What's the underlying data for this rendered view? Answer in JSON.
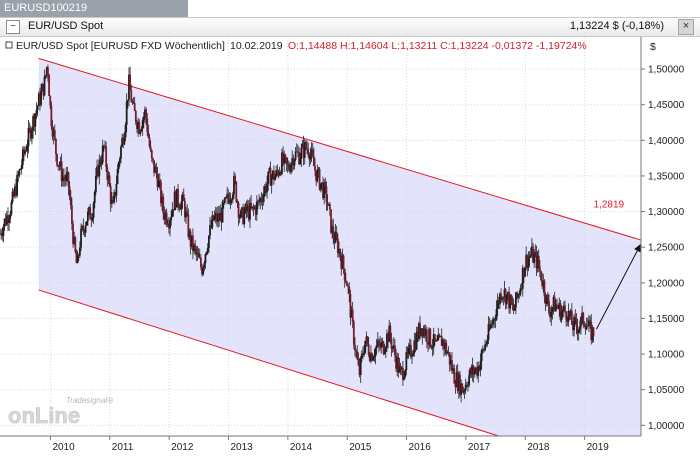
{
  "tab": {
    "label": "EURUSD100219"
  },
  "header": {
    "collapse_icon": "minus-box-icon",
    "title": "EUR/USD Spot",
    "price_change": "1,13224 $  (-0,18%)",
    "close_icon": "close-icon"
  },
  "legend": {
    "name": "EUR/USD Spot [EURUSD FXD  Wöchentlich]",
    "date": "10.02.2019",
    "ohlc_text": "O:1,14488 H:1,14604 L:1,13211 C:1,13224 -0,01372 -1,19724%"
  },
  "colors": {
    "channel_line": "#e01b22",
    "channel_fill": "#e3e3fb",
    "candle_down": "#7a1e2e",
    "candle_up": "#1f1f1f",
    "header_bg": "#9aa1aa"
  },
  "watermark": {
    "top": "Tradesignal®",
    "bottom": "onLine"
  },
  "chart_data": {
    "type": "candlestick",
    "title": "EUR/USD Spot",
    "currency_label": "$",
    "y_range": [
      0.985,
      1.545
    ],
    "y_ticks": [
      "1,50000",
      "1,45000",
      "1,40000",
      "1,35000",
      "1,30000",
      "1,25000",
      "1,20000",
      "1,15000",
      "1,10000",
      "1,05000",
      "1,00000"
    ],
    "x_range": [
      2009.15,
      2019.95
    ],
    "x_ticks": [
      "2010",
      "2011",
      "2012",
      "2013",
      "2014",
      "2015",
      "2016",
      "2017",
      "2018",
      "2019"
    ],
    "trend_channel": {
      "upper": [
        [
          2009.8,
          1.515
        ],
        [
          2019.95,
          1.26
        ]
      ],
      "lower": [
        [
          2009.8,
          1.19
        ],
        [
          2017.55,
          0.985
        ]
      ]
    },
    "target_label": "1,2819",
    "arrow": {
      "from": [
        2019.2,
        1.135
      ],
      "to": [
        2019.95,
        1.255
      ]
    },
    "series_points": [
      [
        2009.15,
        1.27
      ],
      [
        2009.35,
        1.31
      ],
      [
        2009.55,
        1.38
      ],
      [
        2009.75,
        1.44
      ],
      [
        2009.9,
        1.48
      ],
      [
        2009.95,
        1.51
      ],
      [
        2010.0,
        1.44
      ],
      [
        2010.1,
        1.38
      ],
      [
        2010.2,
        1.35
      ],
      [
        2010.3,
        1.34
      ],
      [
        2010.4,
        1.25
      ],
      [
        2010.45,
        1.22
      ],
      [
        2010.5,
        1.26
      ],
      [
        2010.6,
        1.29
      ],
      [
        2010.7,
        1.3
      ],
      [
        2010.8,
        1.36
      ],
      [
        2010.9,
        1.39
      ],
      [
        2011.0,
        1.33
      ],
      [
        2011.05,
        1.3
      ],
      [
        2011.15,
        1.37
      ],
      [
        2011.25,
        1.42
      ],
      [
        2011.32,
        1.48
      ],
      [
        2011.4,
        1.44
      ],
      [
        2011.5,
        1.42
      ],
      [
        2011.6,
        1.44
      ],
      [
        2011.7,
        1.37
      ],
      [
        2011.8,
        1.35
      ],
      [
        2011.9,
        1.3
      ],
      [
        2012.0,
        1.29
      ],
      [
        2012.1,
        1.32
      ],
      [
        2012.25,
        1.31
      ],
      [
        2012.35,
        1.26
      ],
      [
        2012.45,
        1.24
      ],
      [
        2012.55,
        1.22
      ],
      [
        2012.65,
        1.26
      ],
      [
        2012.75,
        1.29
      ],
      [
        2012.85,
        1.29
      ],
      [
        2013.0,
        1.32
      ],
      [
        2013.1,
        1.34
      ],
      [
        2013.2,
        1.29
      ],
      [
        2013.3,
        1.3
      ],
      [
        2013.4,
        1.3
      ],
      [
        2013.5,
        1.31
      ],
      [
        2013.6,
        1.33
      ],
      [
        2013.7,
        1.35
      ],
      [
        2013.8,
        1.35
      ],
      [
        2013.9,
        1.37
      ],
      [
        2014.0,
        1.36
      ],
      [
        2014.1,
        1.38
      ],
      [
        2014.2,
        1.38
      ],
      [
        2014.3,
        1.39
      ],
      [
        2014.35,
        1.39
      ],
      [
        2014.45,
        1.36
      ],
      [
        2014.55,
        1.34
      ],
      [
        2014.65,
        1.32
      ],
      [
        2014.75,
        1.27
      ],
      [
        2014.85,
        1.25
      ],
      [
        2015.0,
        1.2
      ],
      [
        2015.1,
        1.13
      ],
      [
        2015.2,
        1.07
      ],
      [
        2015.3,
        1.12
      ],
      [
        2015.4,
        1.1
      ],
      [
        2015.5,
        1.11
      ],
      [
        2015.6,
        1.11
      ],
      [
        2015.7,
        1.13
      ],
      [
        2015.8,
        1.1
      ],
      [
        2015.9,
        1.07
      ],
      [
        2016.0,
        1.09
      ],
      [
        2016.1,
        1.11
      ],
      [
        2016.25,
        1.14
      ],
      [
        2016.4,
        1.12
      ],
      [
        2016.5,
        1.11
      ],
      [
        2016.6,
        1.12
      ],
      [
        2016.7,
        1.1
      ],
      [
        2016.8,
        1.07
      ],
      [
        2016.95,
        1.05
      ],
      [
        2017.05,
        1.07
      ],
      [
        2017.2,
        1.08
      ],
      [
        2017.35,
        1.12
      ],
      [
        2017.5,
        1.16
      ],
      [
        2017.6,
        1.19
      ],
      [
        2017.7,
        1.18
      ],
      [
        2017.8,
        1.16
      ],
      [
        2017.9,
        1.19
      ],
      [
        2018.0,
        1.23
      ],
      [
        2018.1,
        1.24
      ],
      [
        2018.2,
        1.23
      ],
      [
        2018.3,
        1.2
      ],
      [
        2018.4,
        1.16
      ],
      [
        2018.5,
        1.17
      ],
      [
        2018.6,
        1.16
      ],
      [
        2018.7,
        1.16
      ],
      [
        2018.8,
        1.14
      ],
      [
        2018.9,
        1.14
      ],
      [
        2019.0,
        1.15
      ],
      [
        2019.1,
        1.13
      ],
      [
        2019.15,
        1.13
      ]
    ]
  }
}
